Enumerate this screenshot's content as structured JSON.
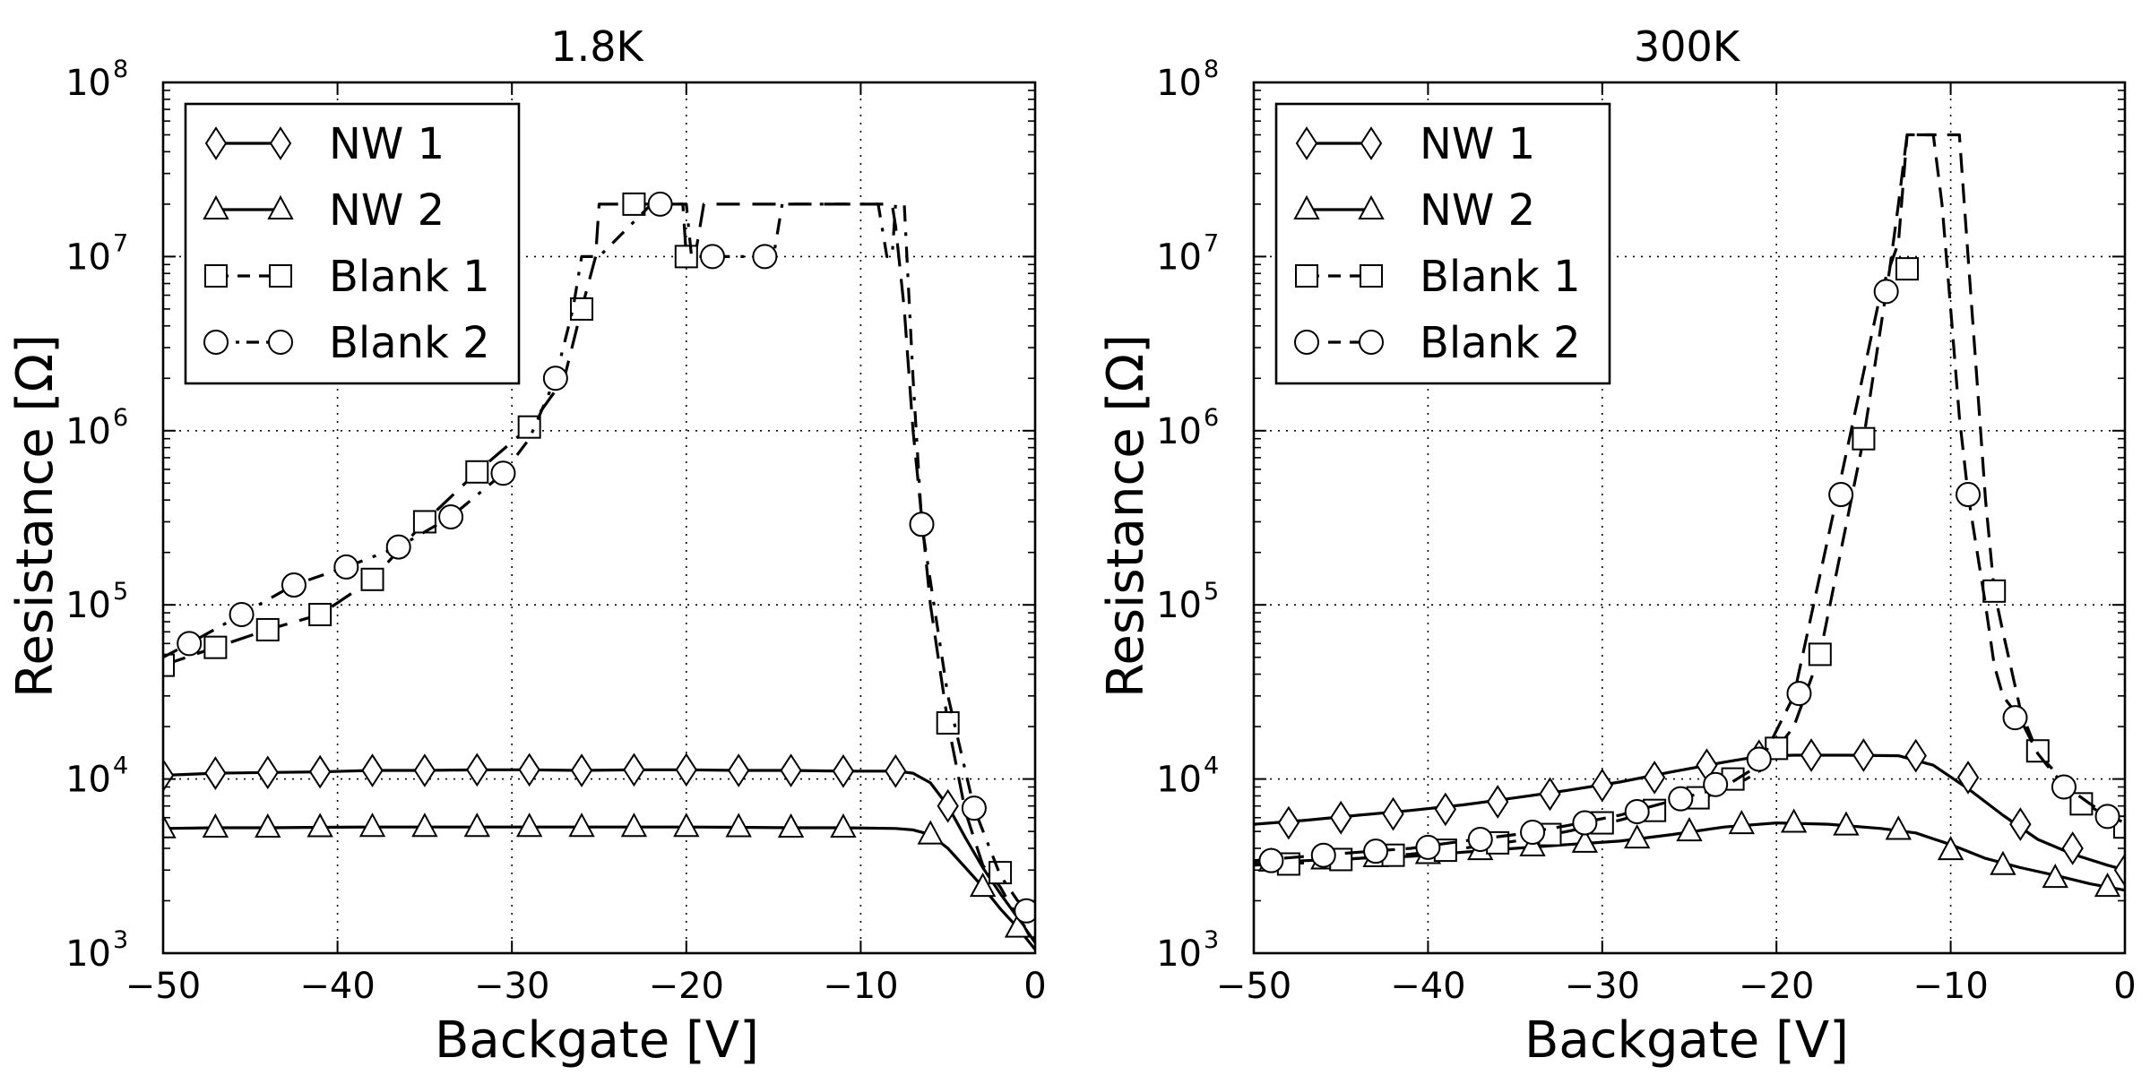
{
  "chart_data": [
    {
      "type": "line",
      "title": "1.8K",
      "xlabel": "Backgate [V]",
      "ylabel": "Resistance [Ω]",
      "yscale": "log",
      "xlim": [
        -50,
        0
      ],
      "ylim": [
        1000,
        100000000
      ],
      "grid": true,
      "legend_position": "top-left",
      "xticks": [
        {
          "v": -50,
          "label": "−50"
        },
        {
          "v": -40,
          "label": "−40"
        },
        {
          "v": -30,
          "label": "−30"
        },
        {
          "v": -20,
          "label": "−20"
        },
        {
          "v": -10,
          "label": "−10"
        },
        {
          "v": 0,
          "label": "0"
        }
      ],
      "yticks": [
        {
          "v": 3,
          "base": "10",
          "exp": "3"
        },
        {
          "v": 4,
          "base": "10",
          "exp": "4"
        },
        {
          "v": 5,
          "base": "10",
          "exp": "5"
        },
        {
          "v": 6,
          "base": "10",
          "exp": "6"
        },
        {
          "v": 7,
          "base": "10",
          "exp": "7"
        },
        {
          "v": 8,
          "base": "10",
          "exp": "8"
        }
      ],
      "series": [
        {
          "name": "NW 1",
          "marker": "diamond",
          "dash": "",
          "x": [
            -50,
            -47,
            -44,
            -41,
            -38,
            -35,
            -32,
            -29,
            -26,
            -23,
            -20,
            -17,
            -14,
            -11,
            -8,
            -7,
            -6,
            -5,
            -4,
            -3,
            -2,
            -1,
            0
          ],
          "y": [
            10500,
            10800,
            10900,
            11000,
            11200,
            11200,
            11300,
            11300,
            11200,
            11300,
            11300,
            11200,
            11200,
            11100,
            11100,
            10800,
            9500,
            7000,
            4600,
            3100,
            2200,
            1600,
            1150
          ],
          "markers_x": [
            -50,
            -47,
            -44,
            -41,
            -38,
            -35,
            -32,
            -29,
            -26,
            -23,
            -20,
            -17,
            -14,
            -11,
            -8,
            -5
          ],
          "markers_y": [
            10500,
            10800,
            10900,
            11000,
            11200,
            11200,
            11300,
            11300,
            11200,
            11300,
            11300,
            11200,
            11200,
            11100,
            11100,
            7000
          ]
        },
        {
          "name": "NW 2",
          "marker": "triangle",
          "dash": "",
          "x": [
            -50,
            -47,
            -44,
            -41,
            -38,
            -35,
            -32,
            -29,
            -26,
            -23,
            -20,
            -17,
            -14,
            -11,
            -8,
            -7,
            -6,
            -5,
            -4,
            -3,
            -2,
            -1,
            0
          ],
          "y": [
            5200,
            5250,
            5250,
            5280,
            5300,
            5300,
            5300,
            5300,
            5300,
            5300,
            5300,
            5280,
            5250,
            5250,
            5200,
            5100,
            4800,
            4000,
            3100,
            2400,
            1800,
            1400,
            1050
          ],
          "markers_x": [
            -50,
            -47,
            -44,
            -41,
            -38,
            -35,
            -32,
            -29,
            -26,
            -23,
            -20,
            -17,
            -14,
            -11,
            -6,
            -3,
            -1
          ],
          "markers_y": [
            5200,
            5250,
            5250,
            5280,
            5300,
            5300,
            5300,
            5300,
            5300,
            5300,
            5300,
            5280,
            5250,
            5250,
            4800,
            2400,
            1400
          ]
        },
        {
          "name": "Blank 1",
          "marker": "square",
          "dash": "26 14",
          "x": [
            -50,
            -47,
            -44,
            -41,
            -38,
            -35,
            -32,
            -29,
            -27,
            -26,
            -25.2,
            -25,
            -24.5,
            -24,
            -23,
            -22,
            -21,
            -20.2,
            -20,
            -19.5,
            -19,
            -18.7,
            -17,
            -14,
            -11,
            -9,
            -8.2,
            -8,
            -7.5,
            -7,
            -6,
            -5,
            -4,
            -3,
            -2,
            -1,
            0
          ],
          "y": [
            45000,
            57000,
            72000,
            88000,
            140000,
            300000,
            580000,
            1050000,
            2000000,
            5000000,
            10000000,
            20000000,
            20000000,
            20000000,
            20000000,
            20000000,
            20000000,
            20000000,
            10000000,
            10000000,
            20000000,
            20000000,
            20000000,
            20000000,
            20000000,
            20000000,
            20000000,
            15000000,
            5000000,
            1000000,
            100000,
            21000,
            6500,
            3200,
            2400,
            1600,
            1200
          ],
          "markers_x": [
            -50,
            -47,
            -44,
            -41,
            -38,
            -35,
            -32,
            -29,
            -26,
            -23,
            -20,
            -5,
            -2
          ],
          "markers_y": [
            45000,
            57000,
            72000,
            88000,
            140000,
            300000,
            580000,
            1050000,
            5000000,
            20000000,
            10000000,
            21000,
            2900
          ]
        },
        {
          "name": "Blank 2",
          "marker": "circle",
          "dash": "18 12 4 12",
          "x": [
            -50,
            -48.5,
            -45.5,
            -42.5,
            -39.5,
            -36.5,
            -33.5,
            -30.5,
            -29,
            -27.5,
            -26.5,
            -26,
            -25,
            -22,
            -20,
            -19.7,
            -19.5,
            -18.7,
            -17,
            -15.6,
            -15,
            -14.5,
            -14,
            -13,
            -12,
            -10,
            -9,
            -8.5,
            -8.2,
            -8,
            -7.5,
            -7,
            -6.5,
            -5,
            -3.5,
            -2,
            -1,
            0
          ],
          "y": [
            50000,
            60000,
            88000,
            130000,
            165000,
            215000,
            320000,
            570000,
            900000,
            2000000,
            5000000,
            10000000,
            10000000,
            20000000,
            20000000,
            10000000,
            10000000,
            10000000,
            10000000,
            10000000,
            10000000,
            20000000,
            20000000,
            20000000,
            20000000,
            20000000,
            20000000,
            10000000,
            10000000,
            20000000,
            20000000,
            2000000,
            290000,
            30000,
            6800,
            2800,
            2000,
            1750
          ],
          "markers_x": [
            -48.5,
            -45.5,
            -42.5,
            -39.5,
            -36.5,
            -33.5,
            -30.5,
            -27.5,
            -21.5,
            -18.5,
            -15.5,
            -6.5,
            -3.5,
            -0.5
          ],
          "markers_y": [
            60000,
            88000,
            130000,
            165000,
            215000,
            320000,
            570000,
            2000000,
            20000000,
            10000000,
            10000000,
            290000,
            6800,
            1750
          ]
        }
      ]
    },
    {
      "type": "line",
      "title": "300K",
      "xlabel": "Backgate [V]",
      "ylabel": "Resistance [Ω]",
      "yscale": "log",
      "xlim": [
        -50,
        0
      ],
      "ylim": [
        1000,
        100000000
      ],
      "grid": true,
      "legend_position": "top-left",
      "xticks": [
        {
          "v": -50,
          "label": "−50"
        },
        {
          "v": -40,
          "label": "−40"
        },
        {
          "v": -30,
          "label": "−30"
        },
        {
          "v": -20,
          "label": "−20"
        },
        {
          "v": -10,
          "label": "−10"
        },
        {
          "v": 0,
          "label": "0"
        }
      ],
      "yticks": [
        {
          "v": 3,
          "base": "10",
          "exp": "3"
        },
        {
          "v": 4,
          "base": "10",
          "exp": "4"
        },
        {
          "v": 5,
          "base": "10",
          "exp": "5"
        },
        {
          "v": 6,
          "base": "10",
          "exp": "6"
        },
        {
          "v": 7,
          "base": "10",
          "exp": "7"
        },
        {
          "v": 8,
          "base": "10",
          "exp": "8"
        }
      ],
      "series": [
        {
          "name": "NW 1",
          "marker": "diamond",
          "dash": "",
          "x": [
            -50,
            -47,
            -44,
            -41,
            -38,
            -35,
            -32,
            -29,
            -26,
            -23,
            -21,
            -19,
            -16,
            -13,
            -11,
            -9,
            -7,
            -5,
            -3,
            -1,
            0
          ],
          "y": [
            5500,
            5800,
            6200,
            6600,
            7100,
            7800,
            8600,
            9600,
            11000,
            12500,
            13500,
            13700,
            13700,
            13600,
            12000,
            8800,
            6200,
            4500,
            3700,
            3200,
            3000
          ],
          "markers_x": [
            -48,
            -45,
            -42,
            -39,
            -36,
            -33,
            -30,
            -27,
            -24,
            -21,
            -18,
            -15,
            -12,
            -9,
            -6,
            -3,
            0
          ],
          "markers_y": [
            5600,
            6000,
            6300,
            6700,
            7400,
            8200,
            9200,
            10200,
            12000,
            13500,
            13700,
            13700,
            13600,
            10200,
            5500,
            4000,
            3000
          ]
        },
        {
          "name": "NW 2",
          "marker": "triangle",
          "dash": "",
          "x": [
            -50,
            -47,
            -44,
            -41,
            -38,
            -35,
            -32,
            -29,
            -26,
            -23,
            -20,
            -17,
            -14,
            -12,
            -10,
            -8,
            -6,
            -4,
            -2,
            0
          ],
          "y": [
            3300,
            3400,
            3500,
            3600,
            3800,
            4000,
            4200,
            4400,
            4800,
            5300,
            5600,
            5500,
            5200,
            4900,
            4200,
            3500,
            3100,
            2800,
            2500,
            2300
          ],
          "markers_x": [
            -49,
            -46,
            -43,
            -40,
            -37,
            -34,
            -31,
            -28,
            -25,
            -22,
            -19,
            -16,
            -13,
            -10,
            -7,
            -4,
            -1
          ],
          "markers_y": [
            3350,
            3450,
            3550,
            3700,
            3900,
            4100,
            4300,
            4550,
            5000,
            5500,
            5600,
            5400,
            5100,
            3900,
            3200,
            2700,
            2400
          ]
        },
        {
          "name": "Blank 1",
          "marker": "square",
          "dash": "22 12",
          "x": [
            -50,
            -47,
            -44,
            -41,
            -38,
            -35,
            -32,
            -29,
            -26,
            -23,
            -21,
            -19,
            -17.5,
            -15,
            -13.5,
            -13,
            -12.5,
            -12,
            -11,
            -10,
            -9.5,
            -9,
            -8.5,
            -8,
            -7.5,
            -7,
            -6,
            -5,
            -4,
            -3,
            -2,
            -1,
            0
          ],
          "y": [
            3200,
            3300,
            3500,
            3700,
            4000,
            4400,
            5000,
            5800,
            7000,
            8500,
            11000,
            20000,
            52000,
            900000,
            8500000,
            20000000,
            50000000,
            50000000,
            50000000,
            50000000,
            50000000,
            10000000,
            2000000,
            400000,
            120000,
            70000,
            25000,
            14000,
            11000,
            8500,
            7000,
            6000,
            5300
          ],
          "markers_x": [
            -48,
            -45,
            -42,
            -39,
            -36,
            -33,
            -30,
            -27,
            -24.5,
            -22.5,
            -20,
            -17.5,
            -15,
            -12.5,
            -7.5,
            -5,
            -2.5,
            0
          ],
          "markers_y": [
            3250,
            3450,
            3650,
            3900,
            4300,
            4800,
            5600,
            6600,
            7800,
            10000,
            15000,
            52000,
            900000,
            8500000,
            120000,
            14500,
            7200,
            5300
          ]
        },
        {
          "name": "Blank 2",
          "marker": "circle",
          "dash": "22 12",
          "x": [
            -50,
            -47,
            -44,
            -41,
            -38,
            -35,
            -32,
            -29,
            -26,
            -23,
            -21,
            -19,
            -16.5,
            -14,
            -13,
            -12.5,
            -11.8,
            -11,
            -10.5,
            -10,
            -9.5,
            -9,
            -8,
            -7.5,
            -7,
            -6,
            -5,
            -4,
            -3,
            -2,
            -1,
            0
          ],
          "y": [
            3400,
            3600,
            3800,
            4000,
            4400,
            4800,
            5400,
            6200,
            7500,
            9000,
            12000,
            30000,
            430000,
            6300000,
            12000000,
            50000000,
            50000000,
            50000000,
            20000000,
            5000000,
            1200000,
            430000,
            100000,
            45000,
            30000,
            22000,
            14000,
            10500,
            8500,
            7200,
            6200,
            5600
          ],
          "markers_x": [
            -49,
            -46,
            -43,
            -40,
            -37,
            -34,
            -31,
            -28,
            -25.5,
            -23.5,
            -21,
            -18.7,
            -16.3,
            -13.7,
            -9,
            -6.3,
            -3.5,
            -1
          ],
          "markers_y": [
            3400,
            3650,
            3850,
            4050,
            4500,
            4950,
            5600,
            6500,
            7700,
            9300,
            13000,
            31000,
            430000,
            6300000,
            430000,
            22500,
            9000,
            6100
          ]
        }
      ]
    }
  ]
}
